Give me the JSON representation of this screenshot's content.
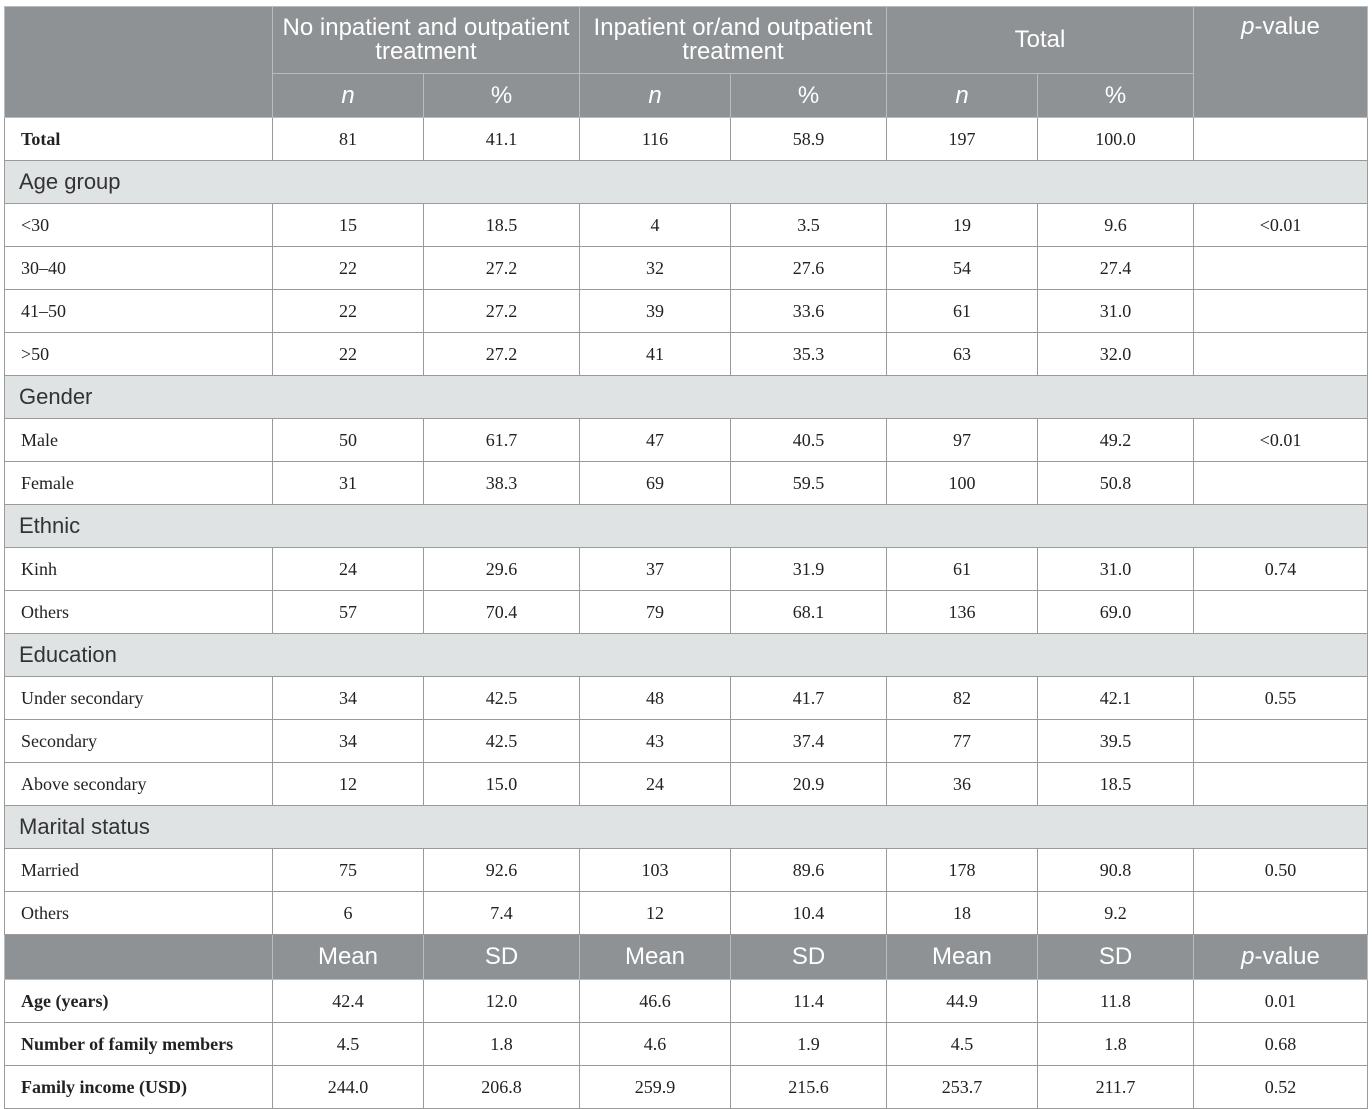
{
  "header": {
    "group1": "No inpatient and outpatient treatment",
    "group2": "Inpatient or/and outpatient treatment",
    "group3": "Total",
    "pvalue_label": "p",
    "pvalue_suffix": "-value",
    "n": "n",
    "pct": "%"
  },
  "total_row": {
    "label": "Total",
    "cells": [
      "81",
      "41.1",
      "116",
      "58.9",
      "197",
      "100.0",
      ""
    ]
  },
  "sections": [
    {
      "title": "Age group",
      "rows": [
        {
          "label": "<30",
          "cells": [
            "15",
            "18.5",
            "4",
            "3.5",
            "19",
            "9.6",
            "<0.01"
          ]
        },
        {
          "label": "30–40",
          "cells": [
            "22",
            "27.2",
            "32",
            "27.6",
            "54",
            "27.4",
            ""
          ]
        },
        {
          "label": "41–50",
          "cells": [
            "22",
            "27.2",
            "39",
            "33.6",
            "61",
            "31.0",
            ""
          ]
        },
        {
          "label": ">50",
          "cells": [
            "22",
            "27.2",
            "41",
            "35.3",
            "63",
            "32.0",
            ""
          ]
        }
      ]
    },
    {
      "title": "Gender",
      "rows": [
        {
          "label": "Male",
          "cells": [
            "50",
            "61.7",
            "47",
            "40.5",
            "97",
            "49.2",
            "<0.01"
          ]
        },
        {
          "label": "Female",
          "cells": [
            "31",
            "38.3",
            "69",
            "59.5",
            "100",
            "50.8",
            ""
          ]
        }
      ]
    },
    {
      "title": "Ethnic",
      "rows": [
        {
          "label": "Kinh",
          "cells": [
            "24",
            "29.6",
            "37",
            "31.9",
            "61",
            "31.0",
            "0.74"
          ]
        },
        {
          "label": "Others",
          "cells": [
            "57",
            "70.4",
            "79",
            "68.1",
            "136",
            "69.0",
            ""
          ]
        }
      ]
    },
    {
      "title": "Education",
      "rows": [
        {
          "label": "Under secondary",
          "cells": [
            "34",
            "42.5",
            "48",
            "41.7",
            "82",
            "42.1",
            "0.55"
          ]
        },
        {
          "label": "Secondary",
          "cells": [
            "34",
            "42.5",
            "43",
            "37.4",
            "77",
            "39.5",
            ""
          ]
        },
        {
          "label": "Above secondary",
          "cells": [
            "12",
            "15.0",
            "24",
            "20.9",
            "36",
            "18.5",
            ""
          ]
        }
      ]
    },
    {
      "title": "Marital status",
      "rows": [
        {
          "label": "Married",
          "cells": [
            "75",
            "92.6",
            "103",
            "89.6",
            "178",
            "90.8",
            "0.50"
          ]
        },
        {
          "label": "Others",
          "cells": [
            "6",
            "7.4",
            "12",
            "10.4",
            "18",
            "9.2",
            ""
          ]
        }
      ]
    }
  ],
  "subheader": {
    "mean": "Mean",
    "sd": "SD"
  },
  "mean_rows": [
    {
      "label": "Age (years)",
      "cells": [
        "42.4",
        "12.0",
        "46.6",
        "11.4",
        "44.9",
        "11.8",
        "0.01"
      ]
    },
    {
      "label": "Number of family members",
      "cells": [
        "4.5",
        "1.8",
        "4.6",
        "1.9",
        "4.5",
        "1.8",
        "0.68"
      ]
    },
    {
      "label": "Family income (USD)",
      "cells": [
        "244.0",
        "206.8",
        "259.9",
        "215.6",
        "253.7",
        "211.7",
        "0.52"
      ]
    }
  ]
}
